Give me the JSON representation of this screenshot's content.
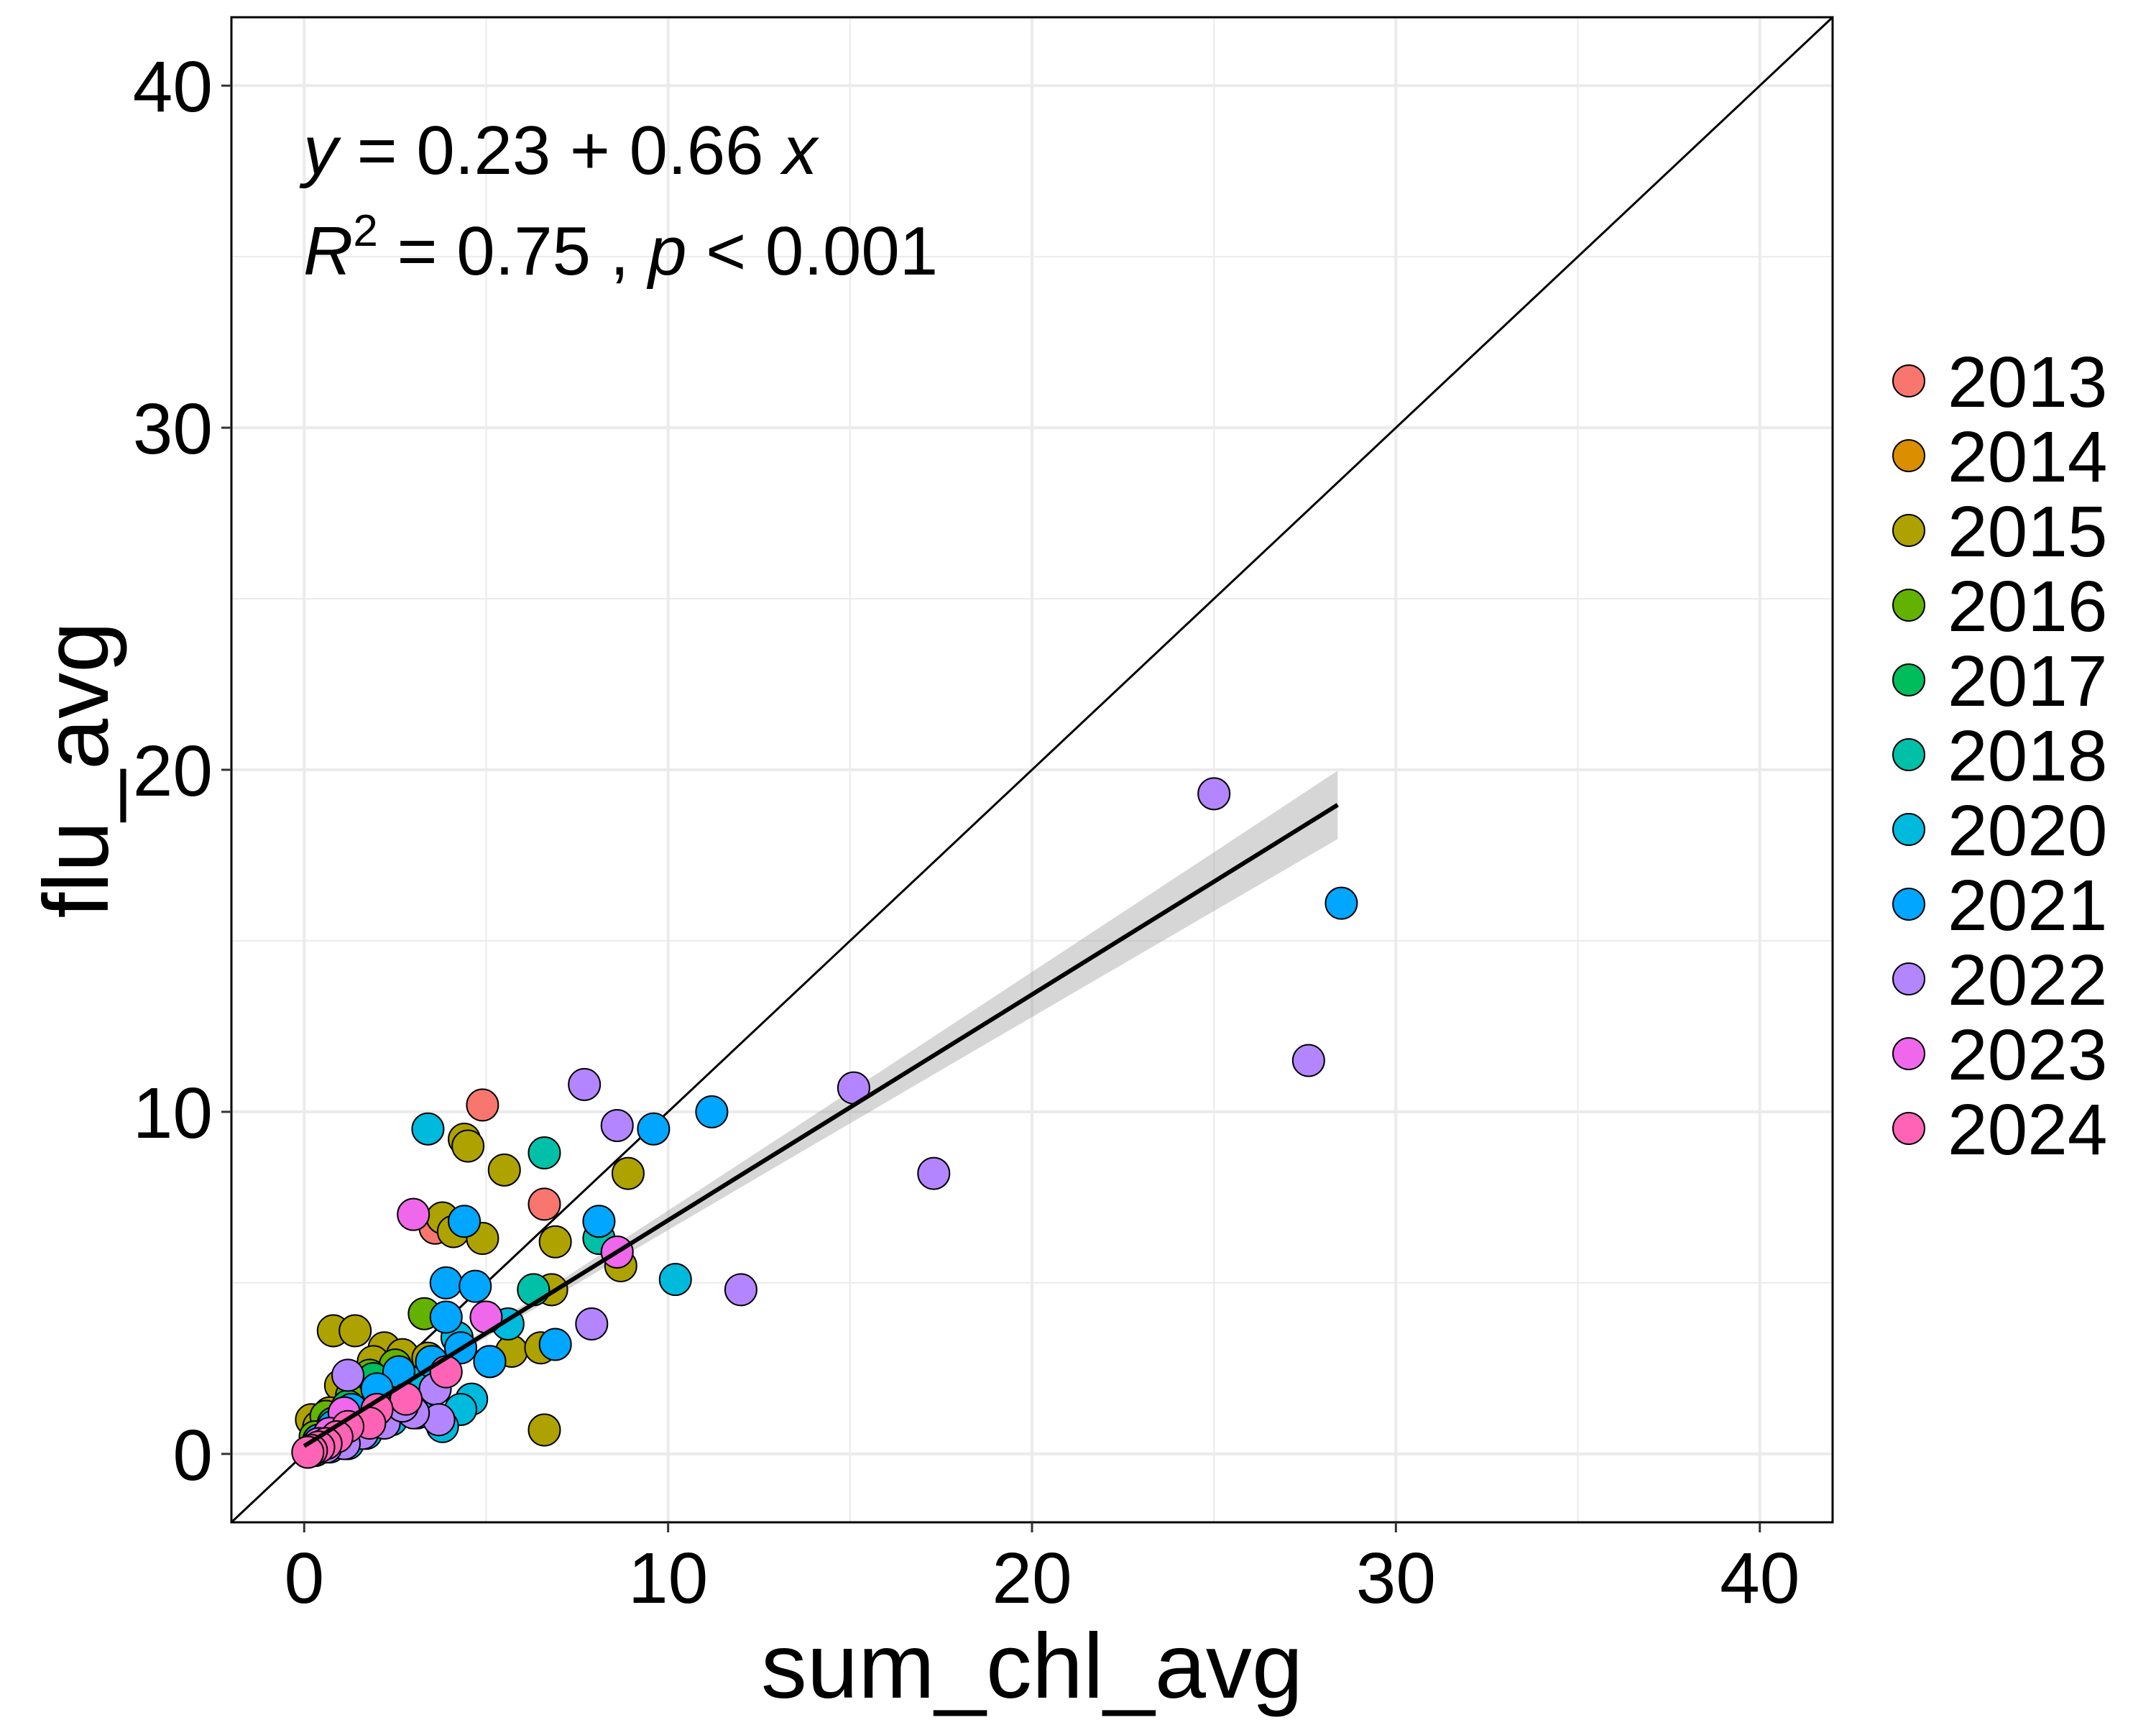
{
  "chart_data": {
    "type": "scatter",
    "xlabel": "sum_chl_avg",
    "ylabel": "flu_avg",
    "xlim": [
      -2,
      42
    ],
    "ylim": [
      -2,
      42
    ],
    "x_ticks": [
      0,
      10,
      20,
      30,
      40
    ],
    "y_ticks": [
      0,
      10,
      20,
      30,
      40
    ],
    "grid": true,
    "legend_position": "right",
    "equation": {
      "line1": {
        "y": "y",
        "eq": " = 0.23 + 0.66 ",
        "x": "x"
      },
      "line2": {
        "R": "R",
        "sup": "2",
        "mid": " = 0.75 , ",
        "p": "p",
        "end": " < 0.001"
      }
    },
    "reference_line": {
      "slope": 1,
      "intercept": 0
    },
    "regression": {
      "slope": 0.66,
      "intercept": 0.23,
      "x_range": [
        0,
        28.4
      ],
      "ci_halfwidth_end": 1.0
    },
    "series": [
      {
        "name": "2013",
        "color": "#F8766D",
        "points": [
          [
            4.9,
            10.2
          ],
          [
            6.6,
            7.3
          ],
          [
            3.6,
            6.6
          ],
          [
            1.5,
            1.2
          ],
          [
            0.6,
            0.5
          ]
        ]
      },
      {
        "name": "2014",
        "color": "#DB8E00",
        "points": [
          [
            0.3,
            0.2
          ],
          [
            0.5,
            0.4
          ],
          [
            0.9,
            0.6
          ],
          [
            1.2,
            0.8
          ]
        ]
      },
      {
        "name": "2015",
        "color": "#AEA200",
        "points": [
          [
            4.4,
            9.2
          ],
          [
            4.5,
            9.0
          ],
          [
            8.9,
            8.2
          ],
          [
            5.5,
            8.3
          ],
          [
            3.8,
            6.9
          ],
          [
            4.1,
            6.5
          ],
          [
            4.9,
            6.3
          ],
          [
            6.9,
            6.2
          ],
          [
            8.7,
            5.5
          ],
          [
            6.8,
            4.8
          ],
          [
            0.8,
            3.6
          ],
          [
            1.4,
            3.6
          ],
          [
            2.2,
            3.1
          ],
          [
            2.7,
            2.9
          ],
          [
            1.9,
            2.7
          ],
          [
            3.4,
            2.8
          ],
          [
            5.7,
            3.0
          ],
          [
            6.5,
            3.1
          ],
          [
            1.0,
            2.0
          ],
          [
            6.6,
            0.7
          ],
          [
            0.2,
            1.0
          ],
          [
            0.4,
            0.8
          ],
          [
            0.7,
            1.2
          ],
          [
            1.6,
            1.5
          ],
          [
            2.3,
            1.8
          ],
          [
            3.0,
            2.1
          ]
        ]
      },
      {
        "name": "2016",
        "color": "#64B200",
        "points": [
          [
            3.3,
            4.1
          ],
          [
            2.5,
            2.6
          ],
          [
            1.8,
            2.3
          ],
          [
            1.3,
            1.7
          ],
          [
            0.6,
            1.1
          ],
          [
            0.3,
            0.5
          ]
        ]
      },
      {
        "name": "2017",
        "color": "#00BD5C",
        "points": [
          [
            1.9,
            2.2
          ],
          [
            1.2,
            1.4
          ],
          [
            0.8,
            0.9
          ],
          [
            0.4,
            0.4
          ]
        ]
      },
      {
        "name": "2018",
        "color": "#00C1A7",
        "points": [
          [
            6.6,
            8.8
          ],
          [
            8.1,
            6.3
          ],
          [
            6.3,
            4.8
          ],
          [
            2.6,
            2.0
          ],
          [
            1.6,
            1.2
          ],
          [
            0.9,
            0.7
          ],
          [
            0.5,
            0.4
          ]
        ]
      },
      {
        "name": "2020",
        "color": "#00BADE",
        "points": [
          [
            3.4,
            9.5
          ],
          [
            10.2,
            5.1
          ],
          [
            5.1,
            2.7
          ],
          [
            4.6,
            1.6
          ],
          [
            4.3,
            1.3
          ],
          [
            3.8,
            0.8
          ],
          [
            3.1,
            1.2
          ],
          [
            2.4,
            1.0
          ],
          [
            1.7,
            0.6
          ],
          [
            1.2,
            0.3
          ],
          [
            0.7,
            0.2
          ],
          [
            0.3,
            0.1
          ],
          [
            3.6,
            2.5
          ],
          [
            4.2,
            3.4
          ],
          [
            2.9,
            2.1
          ],
          [
            2.1,
            1.5
          ],
          [
            5.6,
            3.8
          ],
          [
            1.5,
            1.0
          ]
        ]
      },
      {
        "name": "2021",
        "color": "#00A6FF",
        "points": [
          [
            28.5,
            16.1
          ],
          [
            11.2,
            10.0
          ],
          [
            9.6,
            9.5
          ],
          [
            8.1,
            6.8
          ],
          [
            4.4,
            6.8
          ],
          [
            3.9,
            5.0
          ],
          [
            4.7,
            4.9
          ],
          [
            3.9,
            4.0
          ],
          [
            4.3,
            3.1
          ],
          [
            6.9,
            3.2
          ],
          [
            5.1,
            2.7
          ],
          [
            3.5,
            2.7
          ],
          [
            2.6,
            2.4
          ],
          [
            2.0,
            1.9
          ],
          [
            1.3,
            1.3
          ],
          [
            0.8,
            0.8
          ],
          [
            0.4,
            0.4
          ]
        ]
      },
      {
        "name": "2022",
        "color": "#B385FF",
        "points": [
          [
            25.0,
            19.3
          ],
          [
            27.6,
            11.5
          ],
          [
            15.1,
            10.7
          ],
          [
            17.3,
            8.2
          ],
          [
            12.0,
            4.8
          ],
          [
            7.7,
            10.8
          ],
          [
            8.6,
            9.6
          ],
          [
            7.9,
            3.8
          ],
          [
            1.2,
            2.3
          ],
          [
            3.6,
            1.9
          ],
          [
            3.7,
            1.0
          ],
          [
            3.0,
            1.2
          ],
          [
            2.2,
            0.9
          ],
          [
            1.6,
            0.6
          ],
          [
            1.1,
            0.3
          ],
          [
            0.6,
            0.2
          ],
          [
            0.2,
            0.1
          ],
          [
            2.7,
            1.4
          ]
        ]
      },
      {
        "name": "2023",
        "color": "#EF67EB",
        "points": [
          [
            3.0,
            7.0
          ],
          [
            8.6,
            5.9
          ],
          [
            5.0,
            4.0
          ],
          [
            1.1,
            1.2
          ],
          [
            0.7,
            0.6
          ],
          [
            0.4,
            0.3
          ]
        ]
      },
      {
        "name": "2024",
        "color": "#FF63B6",
        "points": [
          [
            3.9,
            2.4
          ],
          [
            2.8,
            1.6
          ],
          [
            2.0,
            1.3
          ],
          [
            1.8,
            0.9
          ],
          [
            1.2,
            0.8
          ],
          [
            0.9,
            0.5
          ],
          [
            0.6,
            0.3
          ],
          [
            0.4,
            0.2
          ],
          [
            0.2,
            0.1
          ],
          [
            0.1,
            0.05
          ]
        ]
      }
    ]
  }
}
